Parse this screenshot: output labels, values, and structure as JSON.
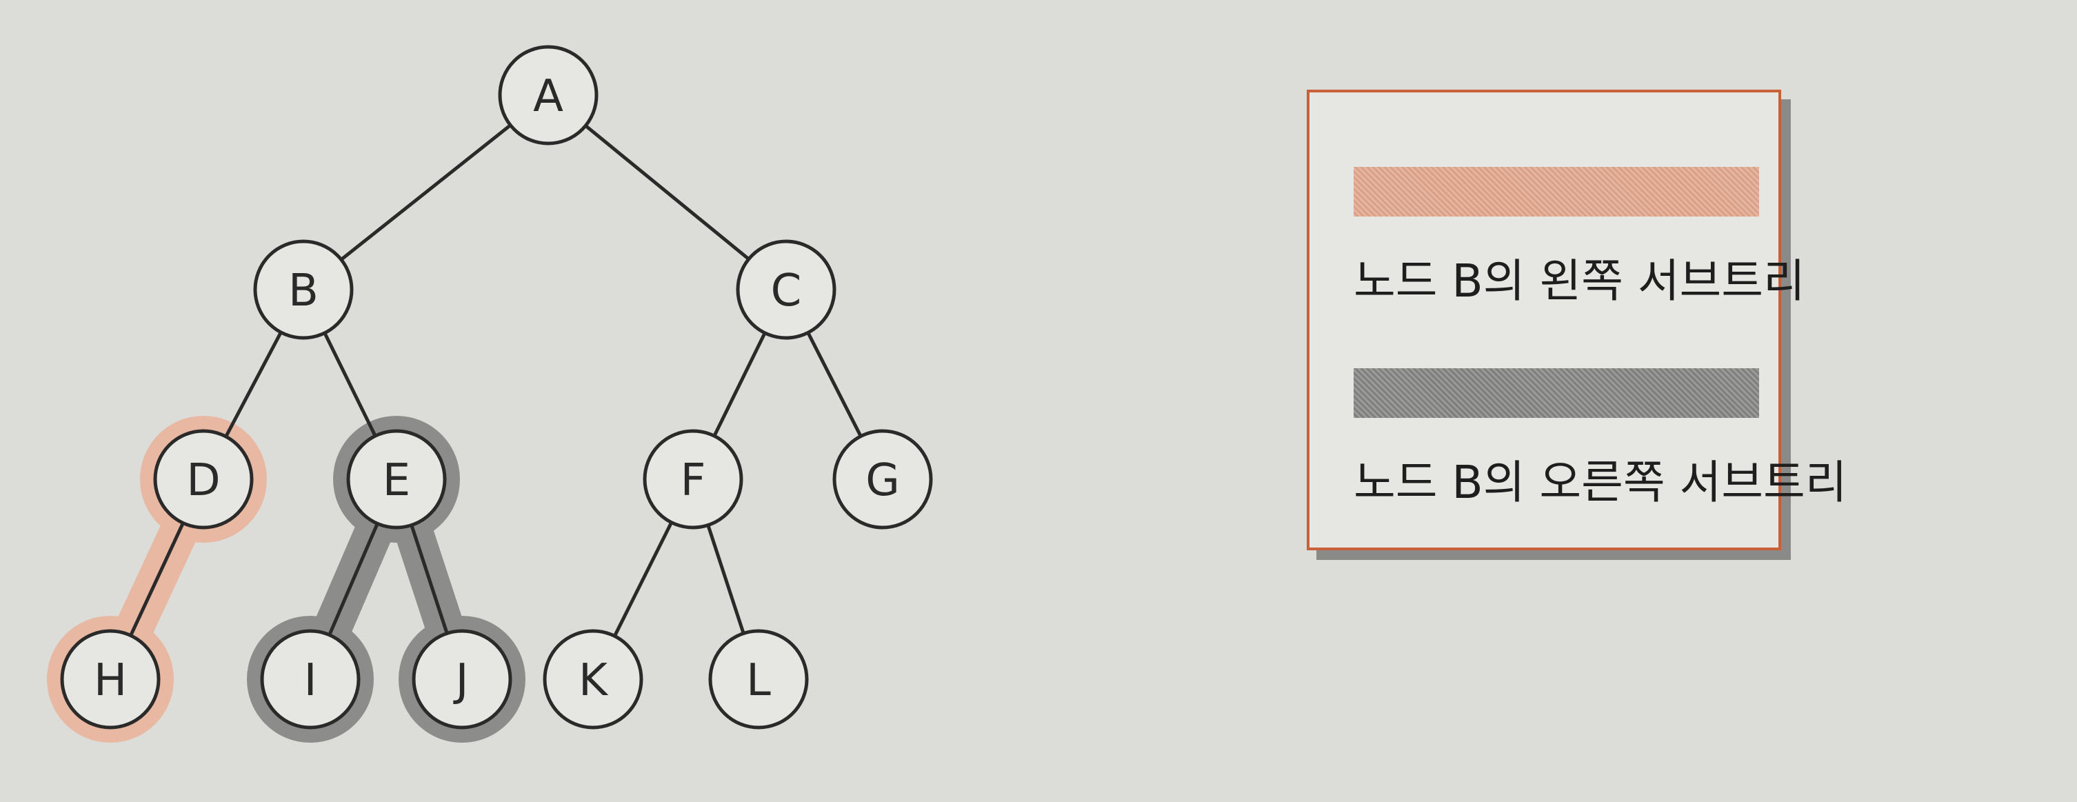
{
  "tree": {
    "nodes": [
      {
        "id": "A",
        "label": "A",
        "group": "none"
      },
      {
        "id": "B",
        "label": "B",
        "group": "none"
      },
      {
        "id": "C",
        "label": "C",
        "group": "none"
      },
      {
        "id": "D",
        "label": "D",
        "group": "left"
      },
      {
        "id": "E",
        "label": "E",
        "group": "right"
      },
      {
        "id": "F",
        "label": "F",
        "group": "none"
      },
      {
        "id": "G",
        "label": "G",
        "group": "none"
      },
      {
        "id": "H",
        "label": "H",
        "group": "left"
      },
      {
        "id": "I",
        "label": "I",
        "group": "right"
      },
      {
        "id": "J",
        "label": "J",
        "group": "right"
      },
      {
        "id": "K",
        "label": "K",
        "group": "none"
      },
      {
        "id": "L",
        "label": "L",
        "group": "none"
      }
    ],
    "edges": [
      {
        "from": "A",
        "to": "B"
      },
      {
        "from": "A",
        "to": "C"
      },
      {
        "from": "B",
        "to": "D"
      },
      {
        "from": "B",
        "to": "E"
      },
      {
        "from": "C",
        "to": "F"
      },
      {
        "from": "C",
        "to": "G"
      },
      {
        "from": "D",
        "to": "H"
      },
      {
        "from": "E",
        "to": "I"
      },
      {
        "from": "E",
        "to": "J"
      },
      {
        "from": "F",
        "to": "K"
      },
      {
        "from": "F",
        "to": "L"
      }
    ]
  },
  "legend": {
    "left_subtree_label": "노드 B의 왼쪽 서브트리",
    "right_subtree_label": "노드 B의 오른쪽 서브트리"
  },
  "colors": {
    "left_subtree": "#e8b8a2",
    "right_subtree": "#8c8c8a",
    "border_accent": "#c8613a",
    "node_fill": "#e6e6e2",
    "line": "#2a2a2a"
  }
}
